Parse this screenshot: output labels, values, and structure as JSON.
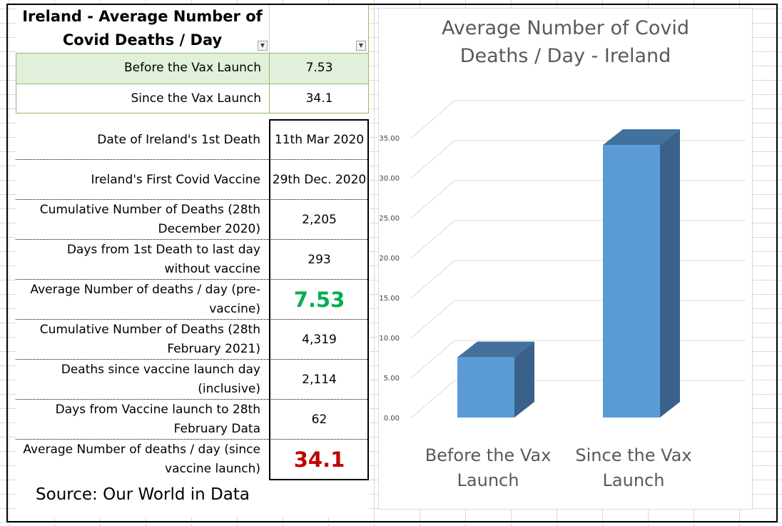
{
  "table": {
    "title_line1": "Ireland - Average Number of",
    "title_line2": "Covid Deaths / Day",
    "summary": [
      {
        "label": "Before the Vax Launch",
        "value": "7.53"
      },
      {
        "label": "Since the Vax Launch",
        "value": "34.1"
      }
    ],
    "details": [
      {
        "label_lines": [
          "Date of Ireland's 1st Death"
        ],
        "value": "11th Mar 2020"
      },
      {
        "label_lines": [
          "Ireland's First Covid Vaccine"
        ],
        "value": "29th Dec. 2020"
      },
      {
        "label_lines": [
          "Cumulative Number of Deaths (28th",
          "December 2020)"
        ],
        "value": "2,205"
      },
      {
        "label_lines": [
          "Days from 1st Death to last day",
          "without vaccine"
        ],
        "value": "293"
      },
      {
        "label_lines": [
          "Average Number of deaths / day (pre-",
          "vaccine)"
        ],
        "value": "7.53"
      },
      {
        "label_lines": [
          "Cumulative Number of Deaths (28th",
          "February 2021)"
        ],
        "value": "4,319"
      },
      {
        "label_lines": [
          "Deaths since vaccine launch day",
          "(inclusive)"
        ],
        "value": "2,114"
      },
      {
        "label_lines": [
          "Days from Vaccine launch to 28th",
          "February Data"
        ],
        "value": "62"
      },
      {
        "label_lines": [
          "Average Number of deaths / day (since",
          "vaccine launch)"
        ],
        "value": "34.1"
      }
    ],
    "source": "Source: Our World in Data"
  },
  "colors": {
    "bar_front": "#5b9bd5",
    "bar_top": "#41719c",
    "bar_side": "#3a6189",
    "highlight_green": "#00b050",
    "highlight_red": "#c00000",
    "summary_fill": "#e2efda"
  },
  "chart_data": {
    "type": "bar",
    "title": "Average Number of Covid Deaths / Day - Ireland",
    "title_lines": [
      "Average Number of Covid",
      "Deaths / Day - Ireland"
    ],
    "categories": [
      "Before the Vax Launch",
      "Since the Vax Launch"
    ],
    "category_lines": [
      [
        "Before the Vax",
        "Launch"
      ],
      [
        "Since the Vax",
        "Launch"
      ]
    ],
    "values": [
      7.53,
      34.1
    ],
    "ylim": [
      0,
      35
    ],
    "yticks": [
      "0.00",
      "5.00",
      "10.00",
      "15.00",
      "20.00",
      "25.00",
      "30.00",
      "35.00"
    ],
    "ytick_values": [
      0,
      5,
      10,
      15,
      20,
      25,
      30,
      35
    ],
    "grid": true,
    "three_d": true
  }
}
